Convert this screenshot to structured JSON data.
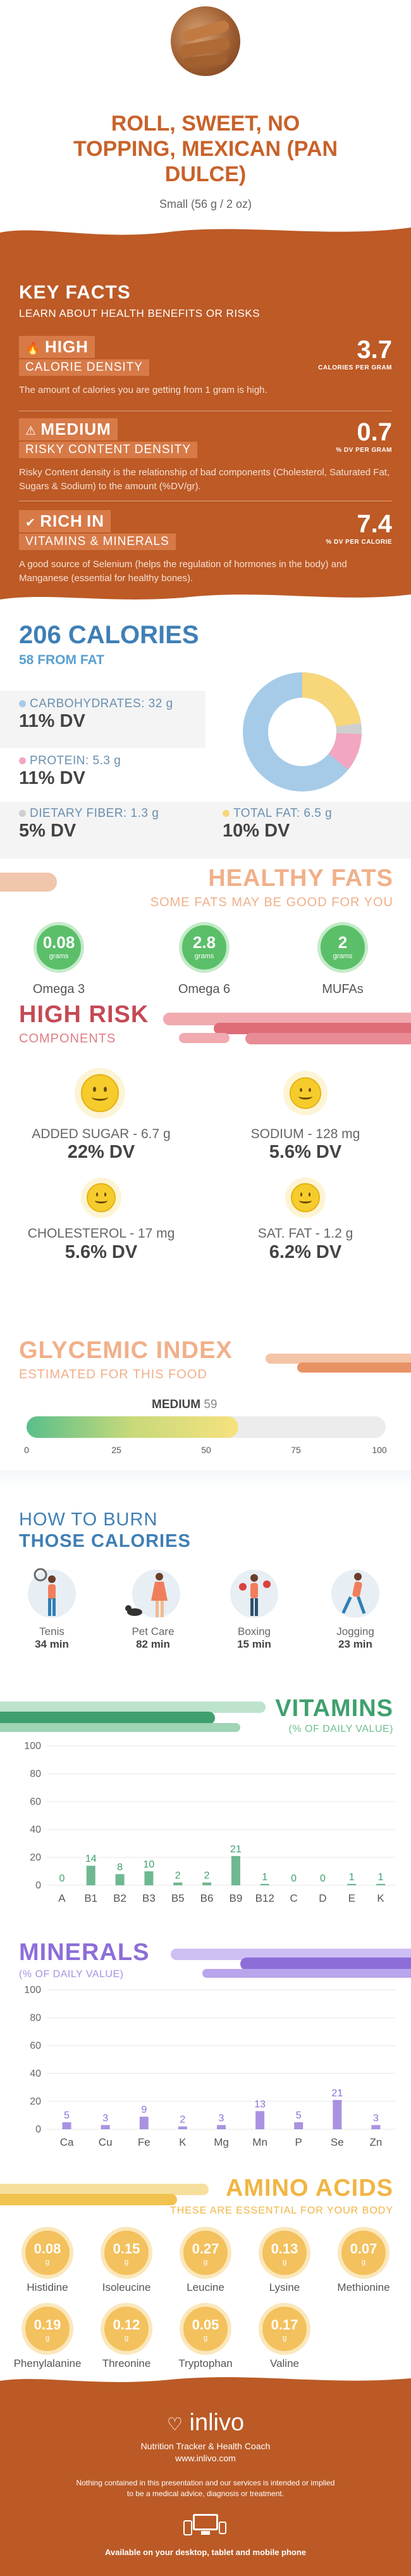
{
  "header": {
    "title": "ROLL, SWEET, NO TOPPING, MEXICAN (PAN DULCE)",
    "title_lines": [
      "ROLL, SWEET, NO",
      "TOPPING, MEXICAN (PAN",
      "DULCE)"
    ],
    "serving": "Small (56 g / 2 oz)",
    "image_icon": "pan-dulce-photo"
  },
  "key_facts": {
    "title": "KEY FACTS",
    "subtitle": "LEARN ABOUT HEALTH BENEFITS OR RISKS",
    "items": [
      {
        "level": "HIGH",
        "label": "CALORIE DENSITY",
        "value": "3.7",
        "unit": "CALORIES PER GRAM",
        "text": "The amount of calories you are getting from 1 gram is high.",
        "icon": "flame-icon"
      },
      {
        "level": "MEDIUM",
        "label": "RISKY CONTENT DENSITY",
        "value": "0.7",
        "unit": "% DV PER GRAM",
        "text": "Risky Content density is the relationship of bad components (Cholesterol, Saturated Fat, Sugars & Sodium) to the amount (%DV/gr).",
        "icon": "warning-icon"
      },
      {
        "level": "RICH",
        "level_suffix": "IN",
        "label": "VITAMINS & MINERALS",
        "value": "7.4",
        "unit": "% DV PER CALORIE",
        "text": "A good source of Selenium (helps the regulation of hormones in the body) and Manganese (essential for healthy bones).",
        "icon": "check-icon"
      }
    ]
  },
  "calories": {
    "title": "206 CALORIES",
    "from_fat": "58 FROM FAT",
    "carbs": {
      "label": "CARBOHYDRATES: 32 g",
      "dv": "11% DV",
      "color": "#a6cbe8"
    },
    "protein": {
      "label": "PROTEIN: 5.3 g",
      "dv": "11% DV",
      "color": "#f2a6c1"
    },
    "fiber": {
      "label": "DIETARY FIBER: 1.3 g",
      "dv": "5% DV",
      "color": "#cfcfcf"
    },
    "fat": {
      "label": "TOTAL FAT: 6.5 g",
      "dv": "10% DV",
      "color": "#f8d67a"
    }
  },
  "healthy_fats": {
    "title": "HEALTHY FATS",
    "subtitle": "SOME FATS MAY BE GOOD FOR YOU",
    "unit": "grams",
    "items": [
      {
        "value": "0.08",
        "name": "Omega 3"
      },
      {
        "value": "2.8",
        "name": "Omega 6"
      },
      {
        "value": "2",
        "name": "MUFAs"
      }
    ],
    "color": "#5bbf69"
  },
  "high_risk": {
    "title": "HIGH RISK",
    "subtitle": "COMPONENTS",
    "items": [
      {
        "label": "ADDED SUGAR - 6.7 g",
        "dv": "22% DV",
        "icon": "smiley-icon"
      },
      {
        "label": "SODIUM - 128 mg",
        "dv": "5.6% DV",
        "icon": "smiley-icon"
      },
      {
        "label": "CHOLESTEROL - 17 mg",
        "dv": "5.6% DV",
        "icon": "smiley-icon"
      },
      {
        "label": "SAT. FAT - 1.2 g",
        "dv": "6.2% DV",
        "icon": "smiley-icon"
      }
    ]
  },
  "glycemic": {
    "title": "GLYCEMIC INDEX",
    "subtitle": "ESTIMATED FOR THIS FOOD",
    "level": "MEDIUM",
    "value": "59",
    "value_num": 59,
    "ticks": [
      "0",
      "25",
      "50",
      "75",
      "100"
    ]
  },
  "burn": {
    "title1": "HOW TO BURN",
    "title2": "THOSE CALORIES",
    "items": [
      {
        "name": "Tenis",
        "minutes": "34 min",
        "icon": "tennis-player-icon"
      },
      {
        "name": "Pet Care",
        "minutes": "82 min",
        "icon": "dog-walker-icon"
      },
      {
        "name": "Boxing",
        "minutes": "15 min",
        "icon": "boxer-icon"
      },
      {
        "name": "Jogging",
        "minutes": "23 min",
        "icon": "jogger-icon"
      }
    ]
  },
  "vitamins": {
    "title": "VITAMINS",
    "subtitle": "(% OF DAILY VALUE)",
    "chart_data": {
      "type": "bar",
      "categories": [
        "A",
        "B1",
        "B2",
        "B3",
        "B5",
        "B6",
        "B9",
        "B12",
        "C",
        "D",
        "E",
        "K"
      ],
      "values": [
        0,
        14,
        8,
        10,
        2,
        2,
        21,
        1,
        0,
        0,
        1,
        1
      ],
      "ylim": [
        0,
        100
      ],
      "yticks": [
        "0",
        "20",
        "40",
        "60",
        "80",
        "100"
      ],
      "color": "#3fa06e"
    }
  },
  "minerals": {
    "title": "MINERALS",
    "subtitle": "(% OF DAILY VALUE)",
    "chart_data": {
      "type": "bar",
      "categories": [
        "Ca",
        "Cu",
        "Fe",
        "K",
        "Mg",
        "Mn",
        "P",
        "Se",
        "Zn"
      ],
      "values": [
        5,
        3,
        9,
        2,
        3,
        13,
        5,
        21,
        3
      ],
      "ylim": [
        0,
        100
      ],
      "yticks": [
        "0",
        "20",
        "40",
        "60",
        "80",
        "100"
      ],
      "color": "#8d6ed8"
    }
  },
  "amino": {
    "title": "AMINO ACIDS",
    "subtitle": "THESE ARE ESSENTIAL FOR YOUR BODY",
    "unit": "g",
    "items": [
      {
        "value": "0.08",
        "name": "Histidine"
      },
      {
        "value": "0.15",
        "name": "Isoleucine"
      },
      {
        "value": "0.27",
        "name": "Leucine"
      },
      {
        "value": "0.13",
        "name": "Lysine"
      },
      {
        "value": "0.07",
        "name": "Methionine"
      },
      {
        "value": "0.19",
        "name": "Phenylalanine"
      },
      {
        "value": "0.12",
        "name": "Threonine"
      },
      {
        "value": "0.05",
        "name": "Tryptophan"
      },
      {
        "value": "0.17",
        "name": "Valine"
      }
    ]
  },
  "footer": {
    "brand": "inlivo",
    "tagline": "Nutrition Tracker & Health Coach",
    "url": "www.inlivo.com",
    "disclaimer1": "Nothing contained in this presentation and our services is intended or implied",
    "disclaimer2": "to be a medical advice, diagnosis or treatment.",
    "available": "Available on your desktop, tablet and mobile phone"
  }
}
